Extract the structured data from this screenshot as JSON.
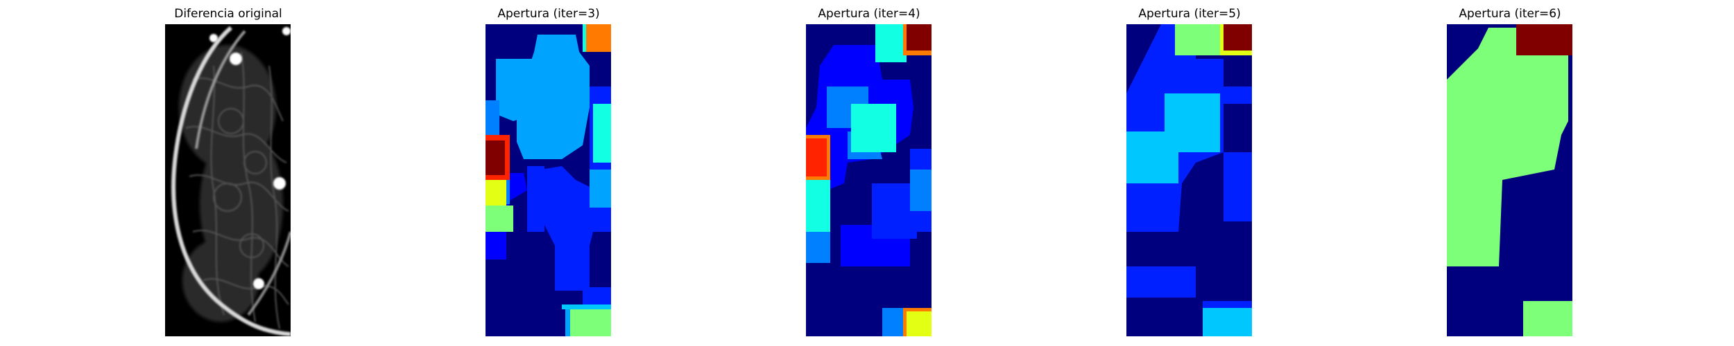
{
  "figure": {
    "panels": [
      {
        "id": "original",
        "title": "Diferencia original"
      },
      {
        "id": "iter3",
        "title": "Apertura (iter=3)"
      },
      {
        "id": "iter4",
        "title": "Apertura (iter=4)"
      },
      {
        "id": "iter5",
        "title": "Apertura (iter=5)"
      },
      {
        "id": "iter6",
        "title": "Apertura (iter=6)"
      }
    ],
    "colors": {
      "jet_navy": "#00007f",
      "jet_blue": "#0000ff",
      "jet_mid_blue": "#0020ff",
      "jet_azure": "#007fff",
      "jet_light_blue": "#00a4ff",
      "jet_sky": "#00c8ff",
      "jet_cyan": "#13ffe3",
      "jet_green": "#7dff79",
      "jet_yellow": "#e3ff13",
      "jet_orange": "#ff7a00",
      "jet_red": "#ff2300",
      "jet_maroon": "#800000",
      "grayscale_bg": "#000000"
    }
  }
}
